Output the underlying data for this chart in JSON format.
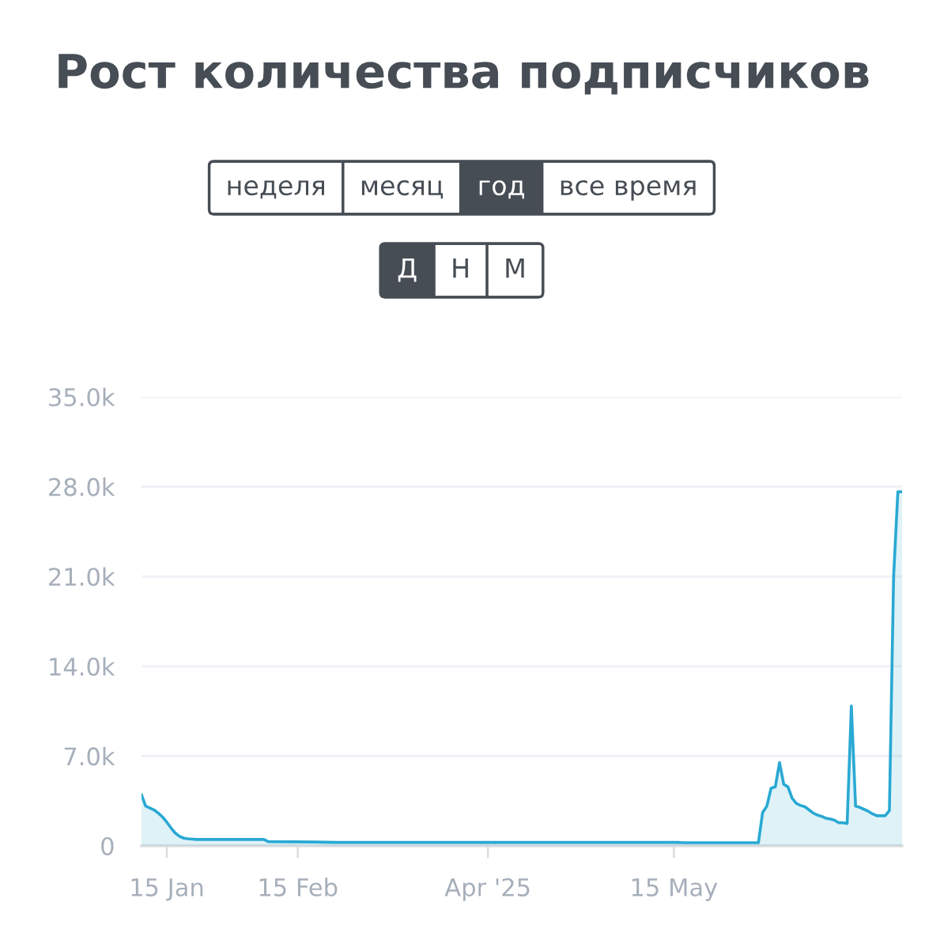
{
  "chart_data": {
    "type": "area",
    "title": "Рост количества подписчиков",
    "annotations": [
      "неделя",
      "месяц",
      "год",
      "все время",
      "Д",
      "Н",
      "М"
    ],
    "x": [
      "2025-01-09",
      "2025-01-10",
      "2025-01-11",
      "2025-01-12",
      "2025-01-13",
      "2025-01-14",
      "2025-01-15",
      "2025-01-16",
      "2025-01-17",
      "2025-01-18",
      "2025-01-19",
      "2025-01-20",
      "2025-01-22",
      "2025-02-07",
      "2025-02-08",
      "2025-02-19",
      "2025-02-24",
      "2025-05-16",
      "2025-05-17",
      "2025-06-04",
      "2025-06-05",
      "2025-06-06",
      "2025-06-07",
      "2025-06-08",
      "2025-06-09",
      "2025-06-10",
      "2025-06-11",
      "2025-06-12",
      "2025-06-13",
      "2025-06-14",
      "2025-06-15",
      "2025-06-16",
      "2025-06-17",
      "2025-06-18",
      "2025-06-19",
      "2025-06-20",
      "2025-06-21",
      "2025-06-22",
      "2025-06-23",
      "2025-06-24",
      "2025-06-25",
      "2025-06-26",
      "2025-06-27",
      "2025-06-28",
      "2025-06-29",
      "2025-06-30",
      "2025-07-01",
      "2025-07-02",
      "2025-07-03",
      "2025-07-04",
      "2025-07-05",
      "2025-07-06",
      "2025-07-07",
      "2025-07-08"
    ],
    "series": [
      {
        "color": "#29a9d3",
        "values": [
          4000,
          3100,
          2950,
          2800,
          2550,
          2250,
          1850,
          1400,
          1000,
          750,
          600,
          550,
          500,
          500,
          330,
          300,
          270,
          270,
          250,
          250,
          2600,
          3100,
          4500,
          4600,
          6500,
          4800,
          4600,
          3700,
          3300,
          3150,
          3050,
          2800,
          2550,
          2400,
          2300,
          2150,
          2100,
          2000,
          1800,
          1800,
          1750,
          10900,
          3100,
          3000,
          2850,
          2700,
          2500,
          2350,
          2350,
          2350,
          2750,
          21000,
          27600,
          27600
        ]
      }
    ],
    "xlim": [
      "2025-01-09",
      "2025-07-08"
    ],
    "xticks": [
      {
        "value": "2025-01-15",
        "label": "15 Jan"
      },
      {
        "value": "2025-02-15",
        "label": "15 Feb"
      },
      {
        "value": "2025-04-01",
        "label": "Apr '25"
      },
      {
        "value": "2025-05-15",
        "label": "15 May"
      }
    ],
    "ylim": [
      0,
      35000
    ],
    "yticks": [
      0,
      {
        "value": 7000,
        "label": "7.0k"
      },
      {
        "value": 14000,
        "label": "14.0k"
      },
      {
        "value": 21000,
        "label": "21.0k"
      },
      {
        "value": 28000,
        "label": "28.0k"
      },
      {
        "value": 35000,
        "label": "35.0k"
      }
    ],
    "grid": "y"
  }
}
